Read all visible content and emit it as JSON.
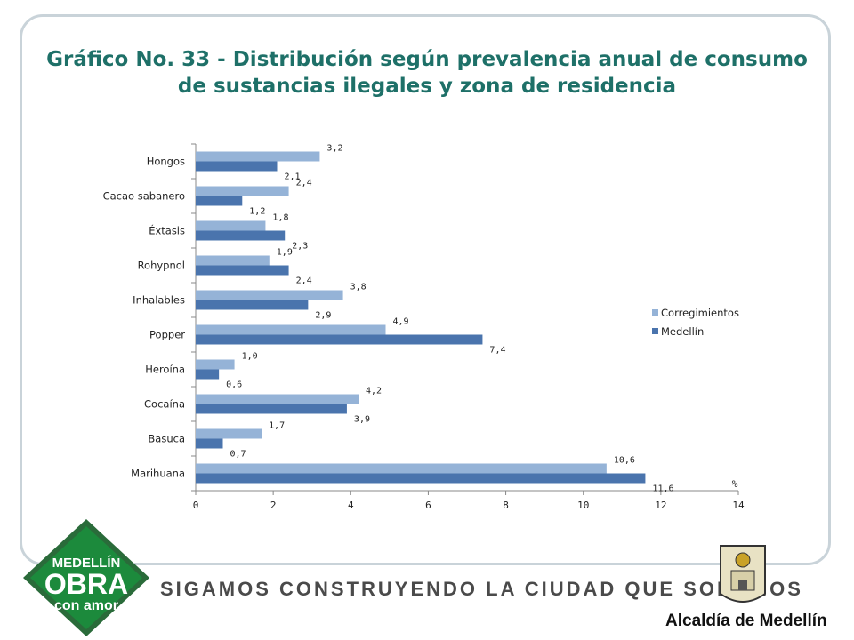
{
  "title_line1": "Gráfico No. 33 - Distribución según prevalencia anual de consumo",
  "title_line2": "de sustancias ilegales y zona de residencia",
  "footer": {
    "slogan": "SIGAMOS CONSTRUYENDO LA CIUDAD QUE SOÑAMOS",
    "logo_left": {
      "line1": "MEDELLÍN",
      "line2": "OBRA",
      "line3": "con amor"
    },
    "logo_right_text": "Alcaldía de Medellín"
  },
  "colors": {
    "title": "#1e7068",
    "corregimientos": "#95b3d7",
    "medellin": "#4a74ad",
    "logo_green": "#1c8a3c"
  },
  "chart_data": {
    "type": "bar",
    "orientation": "horizontal",
    "categories": [
      "Hongos",
      "Cacao sabanero",
      "Éxtasis",
      "Rohypnol",
      "Inhalables",
      "Popper",
      "Heroína",
      "Cocaína",
      "Basuca",
      "Marihuana"
    ],
    "series": [
      {
        "name": "Corregimientos",
        "values": [
          3.2,
          2.4,
          1.8,
          1.9,
          3.8,
          4.9,
          1.0,
          4.2,
          1.7,
          10.6
        ],
        "labels": [
          "3,2",
          "2,4",
          "1,8",
          "1,9",
          "3,8",
          "4,9",
          "1,0",
          "4,2",
          "1,7",
          "10,6"
        ]
      },
      {
        "name": "Medellín",
        "values": [
          2.1,
          1.2,
          2.3,
          2.4,
          2.9,
          7.4,
          0.6,
          3.9,
          0.7,
          11.6
        ],
        "labels": [
          "2,1",
          "1,2",
          "2,3",
          "2,4",
          "2,9",
          "7,4",
          "0,6",
          "3,9",
          "0,7",
          "11,6"
        ]
      }
    ],
    "xlim": [
      0,
      14
    ],
    "xticks": [
      "0",
      "2",
      "4",
      "6",
      "8",
      "10",
      "12",
      "14"
    ],
    "axis_unit_label": "%",
    "grid": false,
    "legend_position": "right"
  }
}
